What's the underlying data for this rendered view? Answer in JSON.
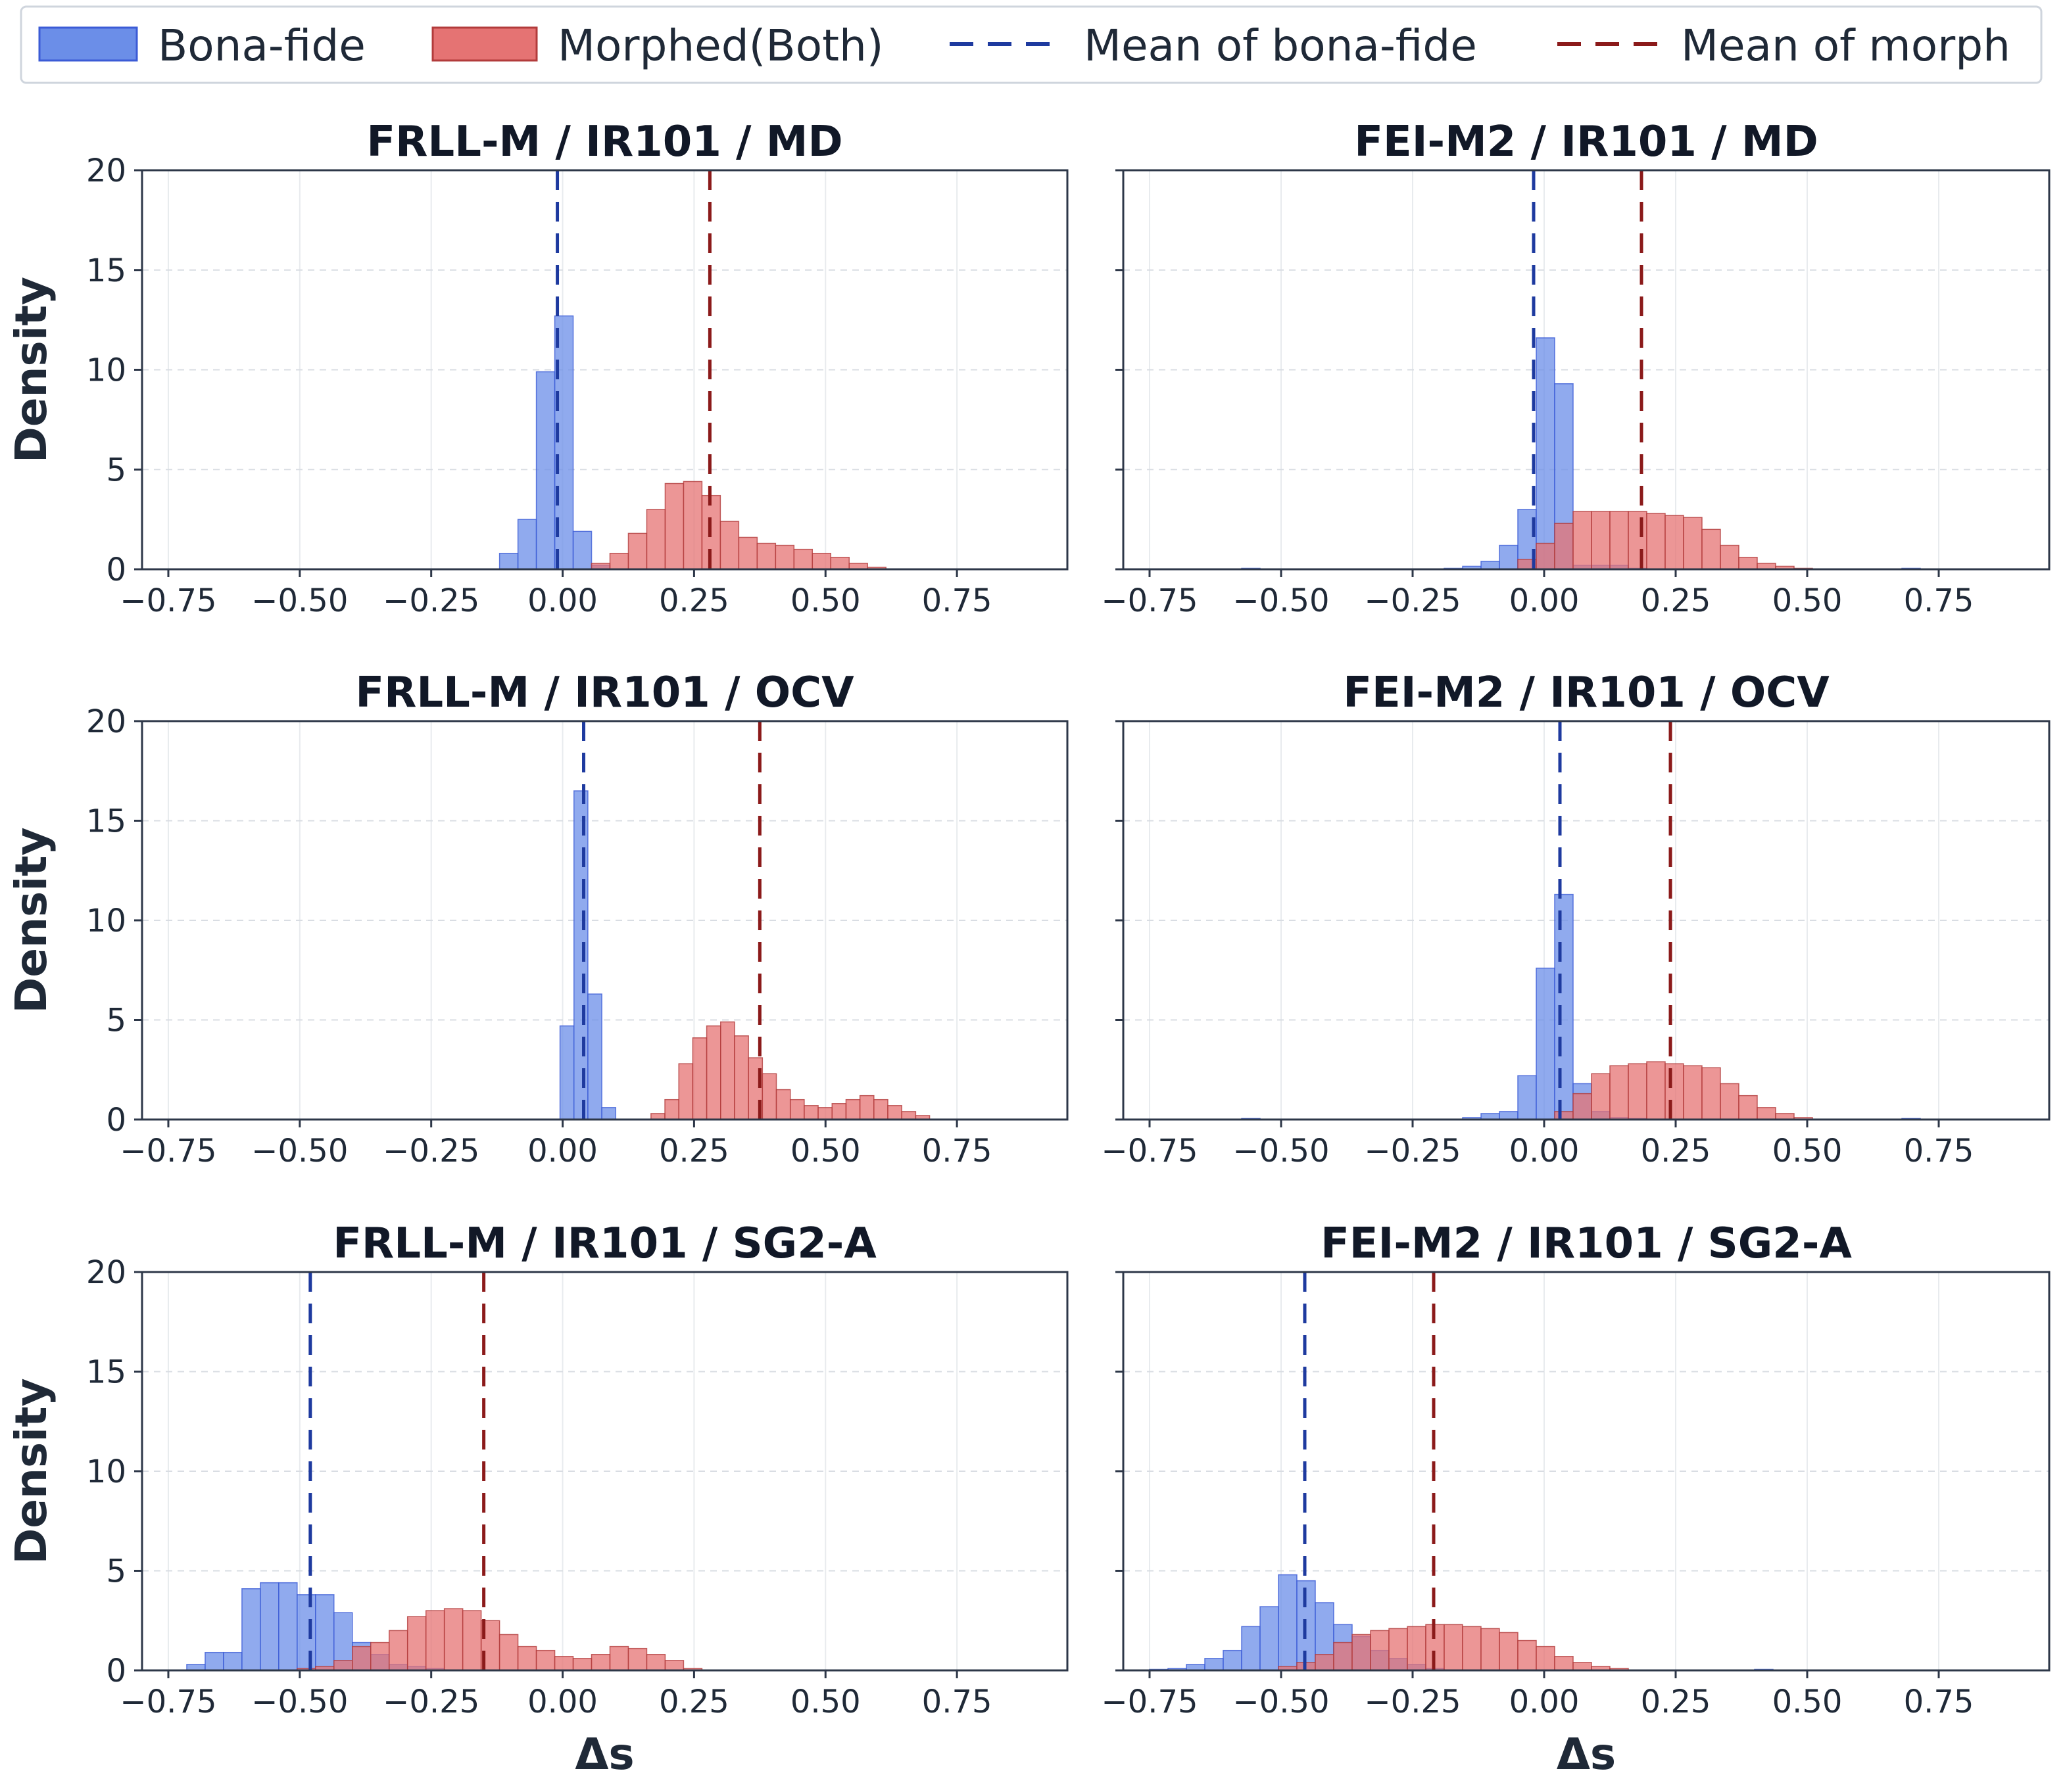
{
  "colors": {
    "bona": "#6b8ee8",
    "bona_edge": "#3b5bd6",
    "morph": "#e57373",
    "morph_edge": "#b23b3b",
    "mean_bona": "#1e3a9f",
    "mean_morph": "#8b1a1a",
    "grid": "#d9dde3",
    "axis": "#2d3748"
  },
  "legend": {
    "items": [
      {
        "label": "Bona-fide",
        "kind": "patch",
        "color": "bona"
      },
      {
        "label": "Morphed(Both)",
        "kind": "patch",
        "color": "morph"
      },
      {
        "label": "Mean of bona-fide",
        "kind": "line",
        "color": "mean_bona"
      },
      {
        "label": "Mean of morph",
        "kind": "line",
        "color": "mean_morph"
      }
    ]
  },
  "chart_data": [
    {
      "type": "histogram",
      "title": "FRLL-M / IR101 / MD",
      "xlabel": "",
      "ylabel": "Density",
      "xlim": [
        -0.8,
        0.96
      ],
      "ylim": [
        0,
        20
      ],
      "xticks": [
        -0.75,
        -0.5,
        -0.25,
        0.0,
        0.25,
        0.5,
        0.75
      ],
      "yticks": [
        0,
        5,
        10,
        15,
        20
      ],
      "bin_width": 0.035,
      "series": [
        {
          "name": "Bona-fide",
          "color": "bona",
          "bins": [
            [
              -0.12,
              0.8
            ],
            [
              -0.085,
              2.5
            ],
            [
              -0.05,
              9.9
            ],
            [
              -0.015,
              12.7
            ],
            [
              0.02,
              1.9
            ],
            [
              0.055,
              0.2
            ]
          ]
        },
        {
          "name": "Morphed(Both)",
          "color": "morph",
          "bins": [
            [
              0.055,
              0.3
            ],
            [
              0.09,
              0.8
            ],
            [
              0.125,
              1.8
            ],
            [
              0.16,
              3.0
            ],
            [
              0.195,
              4.3
            ],
            [
              0.23,
              4.4
            ],
            [
              0.265,
              3.7
            ],
            [
              0.3,
              2.4
            ],
            [
              0.335,
              1.6
            ],
            [
              0.37,
              1.3
            ],
            [
              0.405,
              1.2
            ],
            [
              0.44,
              1.0
            ],
            [
              0.475,
              0.8
            ],
            [
              0.51,
              0.6
            ],
            [
              0.545,
              0.3
            ],
            [
              0.58,
              0.1
            ]
          ]
        }
      ],
      "means": {
        "bona": -0.01,
        "morph": 0.28
      }
    },
    {
      "type": "histogram",
      "title": "FEI-M2 / IR101 / MD",
      "xlabel": "",
      "ylabel": "",
      "xlim": [
        -0.8,
        0.96
      ],
      "ylim": [
        0,
        20
      ],
      "xticks": [
        -0.75,
        -0.5,
        -0.25,
        0.0,
        0.25,
        0.5,
        0.75
      ],
      "yticks": [
        0,
        5,
        10,
        15,
        20
      ],
      "bin_width": 0.035,
      "series": [
        {
          "name": "Bona-fide",
          "color": "bona",
          "bins": [
            [
              -0.575,
              0.05
            ],
            [
              -0.19,
              0.05
            ],
            [
              -0.155,
              0.15
            ],
            [
              -0.12,
              0.4
            ],
            [
              -0.085,
              1.2
            ],
            [
              -0.05,
              3.0
            ],
            [
              -0.015,
              11.6
            ],
            [
              0.02,
              9.3
            ],
            [
              0.055,
              0.2
            ],
            [
              0.09,
              0.2
            ],
            [
              0.125,
              0.2
            ],
            [
              0.16,
              0.05
            ],
            [
              0.68,
              0.05
            ]
          ]
        },
        {
          "name": "Morphed(Both)",
          "color": "morph",
          "bins": [
            [
              -0.05,
              0.5
            ],
            [
              -0.015,
              1.3
            ],
            [
              0.02,
              2.3
            ],
            [
              0.055,
              2.9
            ],
            [
              0.09,
              2.9
            ],
            [
              0.125,
              2.9
            ],
            [
              0.16,
              2.9
            ],
            [
              0.195,
              2.8
            ],
            [
              0.23,
              2.7
            ],
            [
              0.265,
              2.6
            ],
            [
              0.3,
              2.0
            ],
            [
              0.335,
              1.2
            ],
            [
              0.37,
              0.6
            ],
            [
              0.405,
              0.3
            ],
            [
              0.44,
              0.15
            ],
            [
              0.475,
              0.05
            ]
          ]
        }
      ],
      "means": {
        "bona": -0.02,
        "morph": 0.185
      }
    },
    {
      "type": "histogram",
      "title": "FRLL-M / IR101 / OCV",
      "xlabel": "",
      "ylabel": "Density",
      "xlim": [
        -0.8,
        0.96
      ],
      "ylim": [
        0,
        20
      ],
      "xticks": [
        -0.75,
        -0.5,
        -0.25,
        0.0,
        0.25,
        0.5,
        0.75
      ],
      "yticks": [
        0,
        5,
        10,
        15,
        20
      ],
      "bin_width": 0.0265,
      "series": [
        {
          "name": "Bona-fide",
          "color": "bona",
          "bins": [
            [
              -0.005,
              4.7
            ],
            [
              0.0215,
              16.5
            ],
            [
              0.048,
              6.3
            ],
            [
              0.0745,
              0.6
            ]
          ]
        },
        {
          "name": "Morphed(Both)",
          "color": "morph",
          "bins": [
            [
              0.168,
              0.3
            ],
            [
              0.1945,
              1.0
            ],
            [
              0.221,
              2.8
            ],
            [
              0.2475,
              4.1
            ],
            [
              0.274,
              4.7
            ],
            [
              0.3005,
              4.9
            ],
            [
              0.327,
              4.2
            ],
            [
              0.3535,
              3.1
            ],
            [
              0.38,
              2.3
            ],
            [
              0.4065,
              1.5
            ],
            [
              0.433,
              1.0
            ],
            [
              0.4595,
              0.7
            ],
            [
              0.486,
              0.6
            ],
            [
              0.5125,
              0.8
            ],
            [
              0.539,
              1.0
            ],
            [
              0.5655,
              1.2
            ],
            [
              0.592,
              1.0
            ],
            [
              0.6185,
              0.7
            ],
            [
              0.645,
              0.4
            ],
            [
              0.6715,
              0.2
            ]
          ]
        }
      ],
      "means": {
        "bona": 0.04,
        "morph": 0.375
      }
    },
    {
      "type": "histogram",
      "title": "FEI-M2 / IR101 / OCV",
      "xlabel": "",
      "ylabel": "",
      "xlim": [
        -0.8,
        0.96
      ],
      "ylim": [
        0,
        20
      ],
      "xticks": [
        -0.75,
        -0.5,
        -0.25,
        0.0,
        0.25,
        0.5,
        0.75
      ],
      "yticks": [
        0,
        5,
        10,
        15,
        20
      ],
      "bin_width": 0.035,
      "series": [
        {
          "name": "Bona-fide",
          "color": "bona",
          "bins": [
            [
              -0.575,
              0.05
            ],
            [
              -0.155,
              0.1
            ],
            [
              -0.12,
              0.3
            ],
            [
              -0.085,
              0.4
            ],
            [
              -0.05,
              2.2
            ],
            [
              -0.015,
              7.6
            ],
            [
              0.02,
              11.3
            ],
            [
              0.055,
              1.8
            ],
            [
              0.09,
              0.4
            ],
            [
              0.125,
              0.1
            ],
            [
              0.16,
              0.05
            ],
            [
              0.68,
              0.05
            ]
          ]
        },
        {
          "name": "Morphed(Both)",
          "color": "morph",
          "bins": [
            [
              0.02,
              0.4
            ],
            [
              0.055,
              1.3
            ],
            [
              0.09,
              2.3
            ],
            [
              0.125,
              2.7
            ],
            [
              0.16,
              2.8
            ],
            [
              0.195,
              2.9
            ],
            [
              0.23,
              2.8
            ],
            [
              0.265,
              2.7
            ],
            [
              0.3,
              2.6
            ],
            [
              0.335,
              1.8
            ],
            [
              0.37,
              1.2
            ],
            [
              0.405,
              0.6
            ],
            [
              0.44,
              0.3
            ],
            [
              0.475,
              0.1
            ]
          ]
        }
      ],
      "means": {
        "bona": 0.03,
        "morph": 0.24
      }
    },
    {
      "type": "histogram",
      "title": "FRLL-M / IR101 / SG2-A",
      "xlabel": "Δs",
      "ylabel": "Density",
      "xlim": [
        -0.8,
        0.96
      ],
      "ylim": [
        0,
        20
      ],
      "xticks": [
        -0.75,
        -0.5,
        -0.25,
        0.0,
        0.25,
        0.5,
        0.75
      ],
      "yticks": [
        0,
        5,
        10,
        15,
        20
      ],
      "bin_width": 0.035,
      "series": [
        {
          "name": "Bona-fide",
          "color": "bona",
          "bins": [
            [
              -0.715,
              0.3
            ],
            [
              -0.68,
              0.9
            ],
            [
              -0.645,
              0.9
            ],
            [
              -0.61,
              4.1
            ],
            [
              -0.575,
              4.4
            ],
            [
              -0.54,
              4.4
            ],
            [
              -0.505,
              3.8
            ],
            [
              -0.47,
              3.8
            ],
            [
              -0.435,
              2.9
            ],
            [
              -0.4,
              1.4
            ],
            [
              -0.365,
              0.8
            ],
            [
              -0.33,
              0.3
            ],
            [
              -0.295,
              0.2
            ],
            [
              -0.26,
              0.1
            ]
          ]
        },
        {
          "name": "Morphed(Both)",
          "color": "morph",
          "bins": [
            [
              -0.505,
              0.1
            ],
            [
              -0.47,
              0.2
            ],
            [
              -0.435,
              0.5
            ],
            [
              -0.4,
              1.2
            ],
            [
              -0.365,
              1.4
            ],
            [
              -0.33,
              2.0
            ],
            [
              -0.295,
              2.7
            ],
            [
              -0.26,
              3.0
            ],
            [
              -0.225,
              3.1
            ],
            [
              -0.19,
              3.0
            ],
            [
              -0.155,
              2.5
            ],
            [
              -0.12,
              1.8
            ],
            [
              -0.085,
              1.2
            ],
            [
              -0.05,
              1.0
            ],
            [
              -0.015,
              0.7
            ],
            [
              0.02,
              0.6
            ],
            [
              0.055,
              0.8
            ],
            [
              0.09,
              1.2
            ],
            [
              0.125,
              1.1
            ],
            [
              0.16,
              0.8
            ],
            [
              0.195,
              0.5
            ],
            [
              0.23,
              0.1
            ]
          ]
        }
      ],
      "means": {
        "bona": -0.48,
        "morph": -0.15
      }
    },
    {
      "type": "histogram",
      "title": "FEI-M2 / IR101 / SG2-A",
      "xlabel": "Δs",
      "ylabel": "",
      "xlim": [
        -0.8,
        0.96
      ],
      "ylim": [
        0,
        20
      ],
      "xticks": [
        -0.75,
        -0.5,
        -0.25,
        0.0,
        0.25,
        0.5,
        0.75
      ],
      "yticks": [
        0,
        5,
        10,
        15,
        20
      ],
      "bin_width": 0.035,
      "series": [
        {
          "name": "Bona-fide",
          "color": "bona",
          "bins": [
            [
              -0.75,
              0.05
            ],
            [
              -0.715,
              0.1
            ],
            [
              -0.68,
              0.3
            ],
            [
              -0.645,
              0.6
            ],
            [
              -0.61,
              1.0
            ],
            [
              -0.575,
              2.2
            ],
            [
              -0.54,
              3.2
            ],
            [
              -0.505,
              4.8
            ],
            [
              -0.47,
              4.5
            ],
            [
              -0.435,
              3.4
            ],
            [
              -0.4,
              2.3
            ],
            [
              -0.365,
              1.7
            ],
            [
              -0.33,
              1.0
            ],
            [
              -0.295,
              0.6
            ],
            [
              -0.26,
              0.3
            ],
            [
              -0.225,
              0.1
            ],
            [
              0.4,
              0.05
            ]
          ]
        },
        {
          "name": "Morphed(Both)",
          "color": "morph",
          "bins": [
            [
              -0.505,
              0.2
            ],
            [
              -0.47,
              0.4
            ],
            [
              -0.435,
              0.8
            ],
            [
              -0.4,
              1.4
            ],
            [
              -0.365,
              1.8
            ],
            [
              -0.33,
              2.0
            ],
            [
              -0.295,
              2.1
            ],
            [
              -0.26,
              2.2
            ],
            [
              -0.225,
              2.3
            ],
            [
              -0.19,
              2.3
            ],
            [
              -0.155,
              2.2
            ],
            [
              -0.12,
              2.1
            ],
            [
              -0.085,
              1.9
            ],
            [
              -0.05,
              1.5
            ],
            [
              -0.015,
              1.2
            ],
            [
              0.02,
              0.7
            ],
            [
              0.055,
              0.4
            ],
            [
              0.09,
              0.2
            ],
            [
              0.125,
              0.1
            ]
          ]
        }
      ],
      "means": {
        "bona": -0.455,
        "morph": -0.21
      }
    }
  ]
}
